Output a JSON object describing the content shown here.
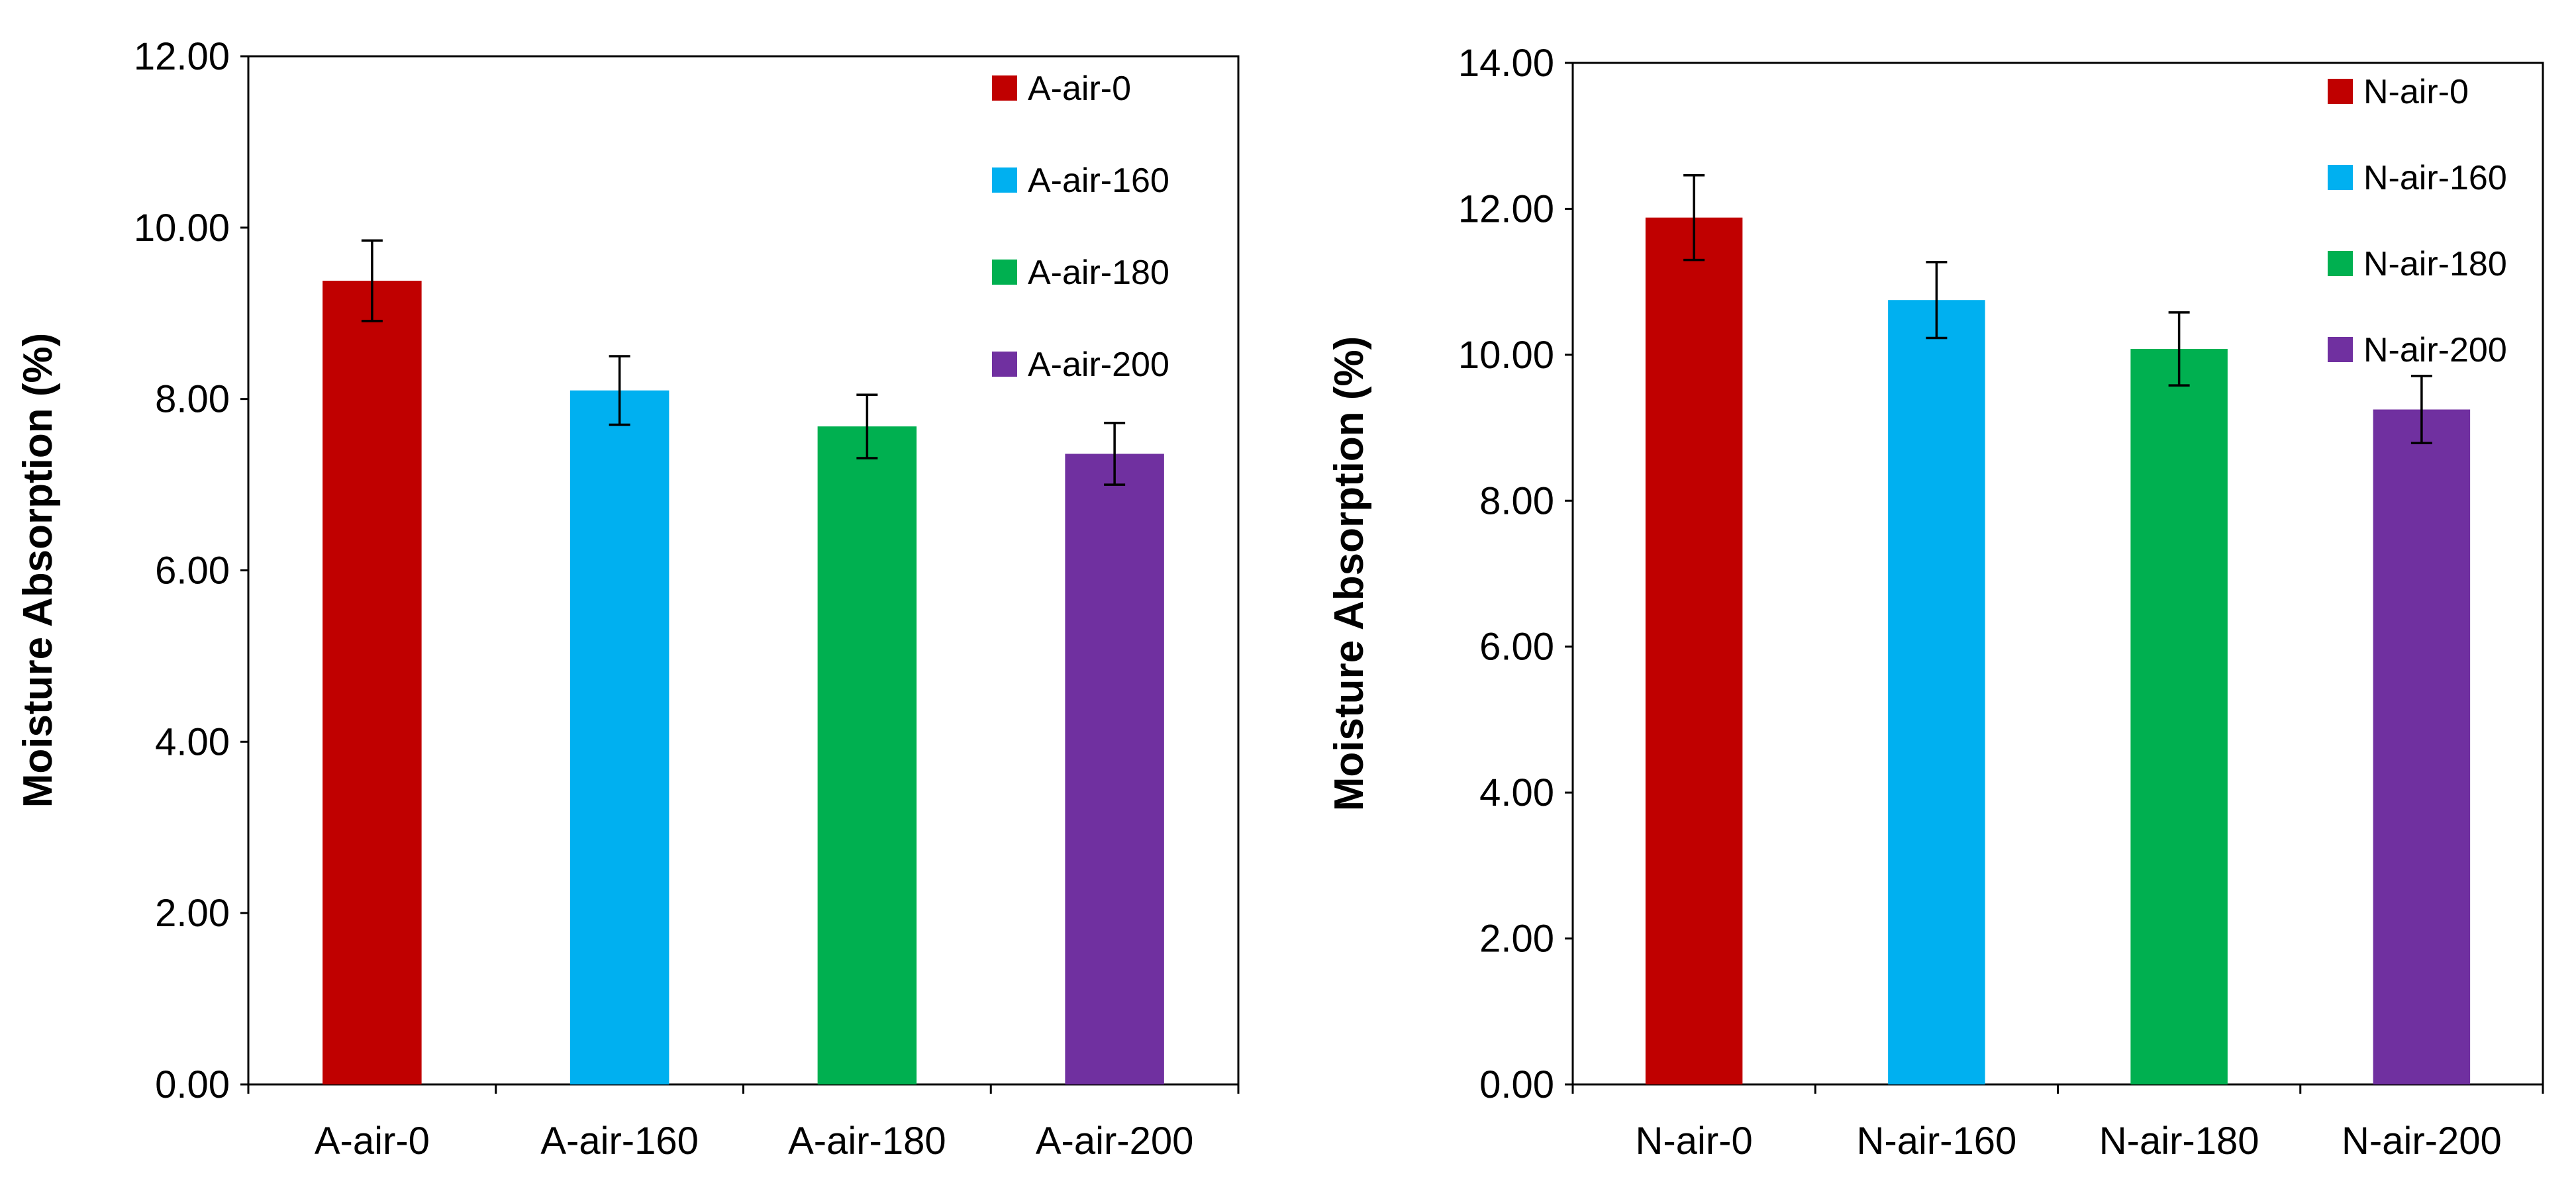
{
  "chart_data": [
    {
      "type": "bar",
      "title": "",
      "xlabel": "",
      "ylabel": "Moisture Absorption (%)",
      "ylim": [
        0,
        12
      ],
      "yticks": [
        "0.00",
        "2.00",
        "4.00",
        "6.00",
        "8.00",
        "10.00",
        "12.00"
      ],
      "categories": [
        "A-air-0",
        "A-air-160",
        "A-air-180",
        "A-air-200"
      ],
      "values": [
        9.38,
        8.1,
        7.68,
        7.36
      ],
      "errors": [
        0.47,
        0.4,
        0.37,
        0.36
      ],
      "colors": [
        "#c00000",
        "#00b0f0",
        "#00b050",
        "#7030a0"
      ],
      "legend": [
        "A-air-0",
        "A-air-160",
        "A-air-180",
        "A-air-200"
      ],
      "legend_position": "top-right",
      "grid": false
    },
    {
      "type": "bar",
      "title": "",
      "xlabel": "",
      "ylabel": "Moisture Absorption (%)",
      "ylim": [
        0,
        14
      ],
      "yticks": [
        "0.00",
        "2.00",
        "4.00",
        "6.00",
        "8.00",
        "10.00",
        "12.00",
        "14.00"
      ],
      "categories": [
        "N-air-0",
        "N-air-160",
        "N-air-180",
        "N-air-200"
      ],
      "values": [
        11.88,
        10.75,
        10.08,
        9.25
      ],
      "errors": [
        0.58,
        0.52,
        0.5,
        0.46
      ],
      "colors": [
        "#c00000",
        "#00b0f0",
        "#00b050",
        "#7030a0"
      ],
      "legend": [
        "N-air-0",
        "N-air-160",
        "N-air-180",
        "N-air-200"
      ],
      "legend_position": "top-right",
      "grid": false
    }
  ]
}
